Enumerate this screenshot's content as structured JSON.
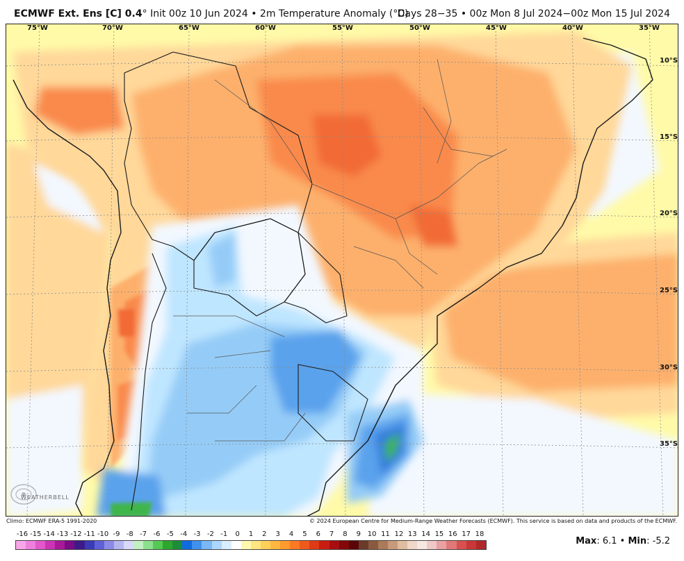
{
  "header": {
    "model": "ECMWF Ext. Ens [C] 0.4",
    "degree": "°",
    "init": "Init 00z 10 Jun 2024",
    "separator": "•",
    "variable": "2m Temperature Anomaly (°C)",
    "valid": "Days 28−35 • 00z Mon 8 Jul 2024−00z Mon 15 Jul 2024"
  },
  "map": {
    "lon_labels": [
      "75°W",
      "70°W",
      "65°W",
      "60°W",
      "55°W",
      "50°W",
      "45°W",
      "40°W",
      "35°W"
    ],
    "lat_labels": [
      "10°S",
      "15°S",
      "20°S",
      "25°S",
      "30°S",
      "35°S"
    ],
    "colors": {
      "ocean_neutral": "#fffaa8",
      "warm_light": "#ffd89a",
      "warm_mid": "#fdb06c",
      "warm_strong": "#f98a4c",
      "warm_hot": "#f26a35",
      "cool_light": "#f3f8ff",
      "cool_mid": "#bfe6ff",
      "cool_blue": "#95ccf7",
      "cool_strong": "#5aa2ec",
      "cool_deep": "#3079dd",
      "cold_green": "#3fb54a"
    }
  },
  "logo": {
    "text": "WEATHERBELL"
  },
  "footer": {
    "climo": "Climo: ECMWF ERA-5 1991-2020",
    "copyright": "© 2024 European Centre for Medium-Range Weather Forecasts (ECMWF). This service is based on data and products of the ECMWF."
  },
  "legend": {
    "labels": [
      "-16",
      "-15",
      "-14",
      "-13",
      "-12",
      "-11",
      "-10",
      "-9",
      "-8",
      "-7",
      "-6",
      "-5",
      "-4",
      "-3",
      "-2",
      "-1",
      "0",
      "1",
      "2",
      "3",
      "4",
      "5",
      "6",
      "7",
      "8",
      "9",
      "10",
      "11",
      "12",
      "13",
      "14",
      "15",
      "16",
      "17",
      "18"
    ],
    "colors": [
      "#f7a6e8",
      "#ef7fdc",
      "#e257cc",
      "#cc34b6",
      "#a8199a",
      "#7a0c85",
      "#3d1a8a",
      "#3a3bb5",
      "#5f5fd6",
      "#8b8be6",
      "#b5b5f0",
      "#d8d8f8",
      "#c2f0c2",
      "#8de08d",
      "#55c955",
      "#2ea72e",
      "#1d8d3a",
      "#0f6ce0",
      "#4090ee",
      "#79b8f5",
      "#acd7fb",
      "#d9eefd",
      "#ffffff",
      "#fff9b0",
      "#ffe680",
      "#ffd05a",
      "#ffb640",
      "#ff9a2e",
      "#f97a22",
      "#ee5a1c",
      "#de3a16",
      "#c81e12",
      "#a80e0e",
      "#82080a",
      "#5a0608",
      "#6a3b2a",
      "#8a5a40",
      "#aa7a5a",
      "#c89a7a",
      "#e0bca0",
      "#f0d8c8",
      "#f5e8e0",
      "#f0c8c8",
      "#e8a0a0",
      "#e07878",
      "#d85050",
      "#c83838",
      "#b02828"
    ]
  },
  "stats": {
    "max_label": "Max",
    "max_value": ": 6.1",
    "sep": "•",
    "min_label": "Min",
    "min_value": ": -5.2"
  }
}
